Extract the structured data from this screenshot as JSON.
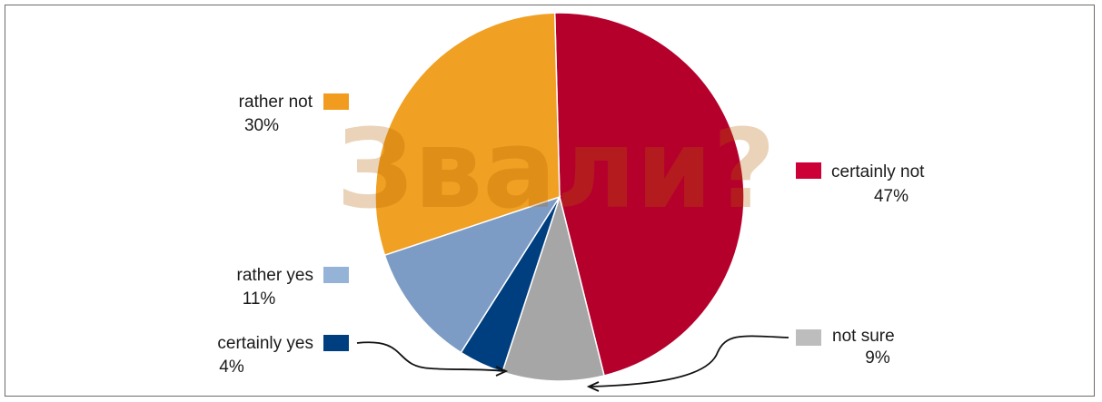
{
  "chart_data": {
    "type": "pie",
    "title": "",
    "watermark": "Звали?",
    "slices": [
      {
        "label": "certainly not",
        "pct_label": "47%",
        "value": 47,
        "color": "#b5002c"
      },
      {
        "label": "not sure",
        "pct_label": "9%",
        "value": 9,
        "color": "#a6a6a6"
      },
      {
        "label": "certainly yes",
        "pct_label": "4%",
        "value": 4,
        "color": "#003f7f"
      },
      {
        "label": "rather yes",
        "pct_label": "11%",
        "value": 11,
        "color": "#7d9cc5"
      },
      {
        "label": "rather not",
        "pct_label": "30%",
        "value": 30,
        "color": "#f0a022"
      }
    ],
    "legend_colors": {
      "certainly not": "#cc0036",
      "not sure": "#bdbdbd",
      "certainly yes": "#003f7f",
      "rather yes": "#95b3d7",
      "rather not": "#f29c1f"
    }
  }
}
